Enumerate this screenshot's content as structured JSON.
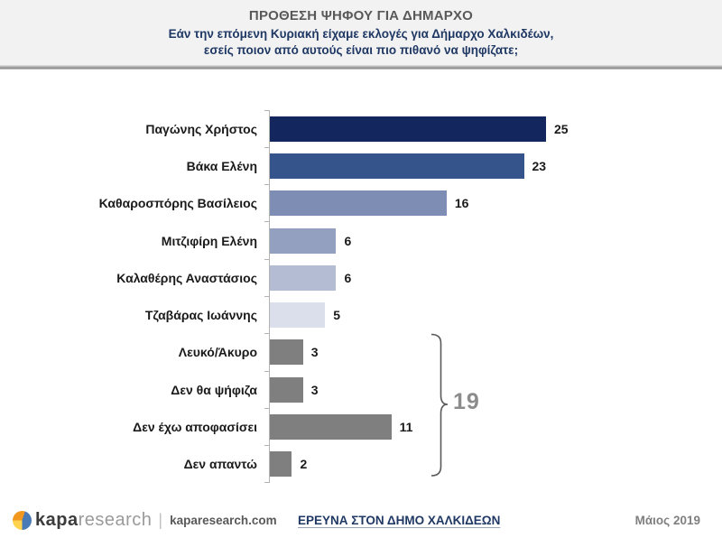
{
  "header": {
    "title": "ΠΡΟΘΕΣΗ ΨΗΦΟΥ ΓΙΑ ΔΗΜΑΡΧΟ",
    "subtitle_line1": "Εάν την επόμενη Κυριακή είχαμε εκλογές για Δήμαρχο Χαλκιδέων,",
    "subtitle_line2": "εσείς ποιον από αυτούς είναι πιο πιθανό να ψηφίζατε;"
  },
  "chart_data": {
    "type": "bar",
    "orientation": "horizontal",
    "title": "ΠΡΟΘΕΣΗ ΨΗΦΟΥ ΓΙΑ ΔΗΜΑΡΧΟ",
    "categories": [
      "Παγώνης Χρήστος",
      "Βάκα Ελένη",
      "Καθαροσπόρης Βασίλειος",
      "Μιτζιφίρη Ελένη",
      "Καλαθέρης Αναστάσιος",
      "Τζαβάρας Ιωάννης",
      "Λευκό/Άκυρο",
      "Δεν θα ψήφιζα",
      "Δεν έχω αποφασίσει",
      "Δεν απαντώ"
    ],
    "values": [
      25,
      23,
      16,
      6,
      6,
      5,
      3,
      3,
      11,
      2
    ],
    "bar_colors": [
      "#14265e",
      "#35548b",
      "#7e8db3",
      "#93a0bf",
      "#b3bcd2",
      "#dadfeb",
      "#7f7f7f",
      "#7f7f7f",
      "#7f7f7f",
      "#7f7f7f"
    ],
    "xlim": [
      0,
      25
    ],
    "data_labels": true,
    "grid": false,
    "legend": false,
    "group_bracket": {
      "label": "19",
      "start_category": "Λευκό/Άκυρο",
      "end_category": "Δεν απαντώ",
      "color": "#8c8c8c"
    }
  },
  "footer": {
    "logo_primary": "kapa",
    "logo_secondary": "research",
    "separator": "|",
    "website": "kaparesearch.com",
    "survey_title": "ΕΡΕΥΝΑ ΣΤΟΝ ΔΗΜΟ ΧΑΛΚΙΔΕΩΝ",
    "date": "Μάιος 2019"
  },
  "colors": {
    "header_background": "#f2f2f2",
    "title_text": "#595959",
    "subtitle_text": "#1f3864",
    "label_text": "#1a1a1a",
    "axis_line": "#b3b3b3",
    "bracket_line": "#595959",
    "group_total_text": "#8c8c8c"
  }
}
